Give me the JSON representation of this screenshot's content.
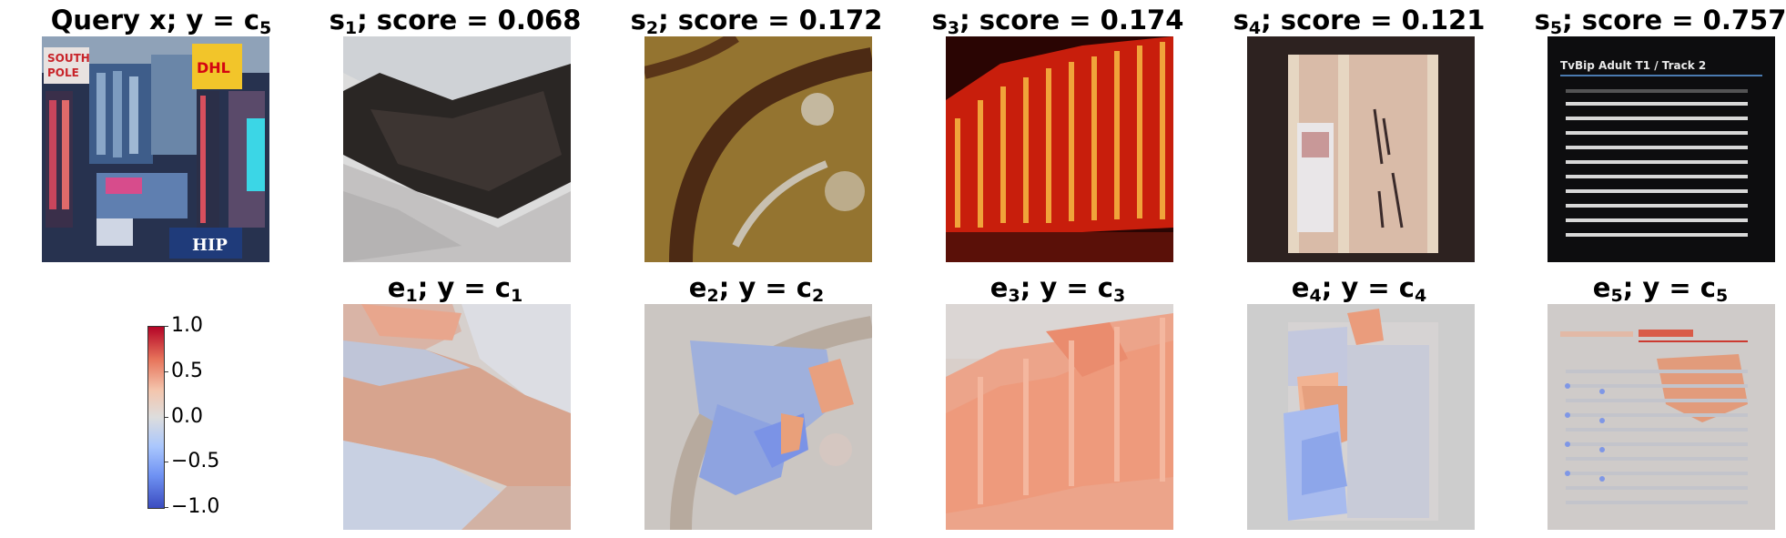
{
  "query": {
    "title_main": "Query x; y = c",
    "title_sub": "5"
  },
  "top_row": [
    {
      "var": "s",
      "sub": "1",
      "text": "; score = 0.068"
    },
    {
      "var": "s",
      "sub": "2",
      "text": "; score = 0.172"
    },
    {
      "var": "s",
      "sub": "3",
      "text": "; score = 0.174"
    },
    {
      "var": "s",
      "sub": "4",
      "text": "; score = 0.121"
    },
    {
      "var": "s",
      "sub": "5",
      "text": "; score = 0.757"
    }
  ],
  "bottom_row": [
    {
      "var": "e",
      "sub": "1",
      "text": "; y = c",
      "sub2": "1"
    },
    {
      "var": "e",
      "sub": "2",
      "text": "; y = c",
      "sub2": "2"
    },
    {
      "var": "e",
      "sub": "3",
      "text": "; y = c",
      "sub2": "3"
    },
    {
      "var": "e",
      "sub": "4",
      "text": "; y = c",
      "sub2": "4"
    },
    {
      "var": "e",
      "sub": "5",
      "text": "; y = c",
      "sub2": "5"
    }
  ],
  "query_image_text": {
    "sign1": "SOUTH",
    "sign2": "POLE",
    "dhl": "DHL",
    "hip": "HIP"
  },
  "s5_image_text": {
    "header": "TvBip Adult T1 / Track 2"
  },
  "colorbar": {
    "ticks": [
      "1.0",
      "0.5",
      "0.0",
      "−0.5",
      "−1.0"
    ],
    "colormap": "coolwarm",
    "colors": {
      "high": "#b40426",
      "mid": "#dddddd",
      "low": "#3b4cc0"
    }
  }
}
